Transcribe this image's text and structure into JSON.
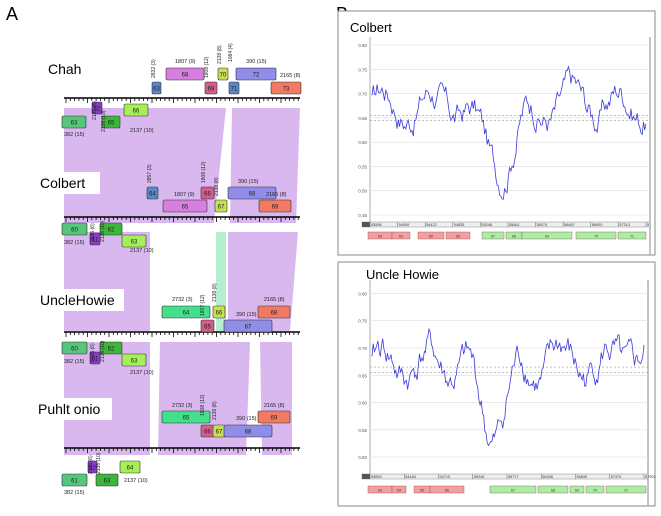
{
  "panel_a": {
    "label": "A",
    "tracks": [
      {
        "name": "Chah",
        "above": [
          {
            "id": "63",
            "label": "63",
            "color": "#5b86c8",
            "num": "2832 (3)"
          },
          {
            "id": "68",
            "label": "68",
            "color": "#d77fde",
            "num": "1807 (9)"
          },
          {
            "id": "69",
            "label": "69",
            "color": "#d45d8d",
            "num": "1808 (12)"
          },
          {
            "id": "70",
            "label": "70",
            "color": "#c8df52",
            "num": "2138 (8)"
          },
          {
            "id": "71",
            "label": "71",
            "color": "#5b86c8",
            "num": "1084 (4)"
          },
          {
            "id": "72",
            "label": "72",
            "color": "#8f8de8",
            "num": "390 (15)"
          },
          {
            "id": "73",
            "label": "73",
            "color": "#f27a63",
            "num": "2165 (8)"
          }
        ],
        "below": [
          {
            "id": "62",
            "label": "62",
            "color": "#8a3bc9",
            "num": "2135 (6)"
          },
          {
            "id": "63b",
            "label": "63",
            "color": "#57c67a",
            "num": "382 (15)"
          },
          {
            "id": "65",
            "label": "65",
            "color": "#3db43c",
            "num": "2136 (10)"
          },
          {
            "id": "66",
            "label": "66",
            "color": "#a6ef58",
            "num": "2137 (10)"
          }
        ]
      },
      {
        "name": "Colbert",
        "above": [
          {
            "id": "64",
            "label": "64",
            "color": "#5b86c8",
            "num": "2857 (3)"
          },
          {
            "id": "65",
            "label": "65",
            "color": "#d77fde",
            "num": "1807 (9)"
          },
          {
            "id": "66",
            "label": "66",
            "color": "#d45d8d",
            "num": "1808 (12)"
          },
          {
            "id": "67",
            "label": "67",
            "color": "#c8df52",
            "num": "2138 (8)"
          },
          {
            "id": "68",
            "label": "68",
            "color": "#8f8de8",
            "num": "390 (15)"
          },
          {
            "id": "69",
            "label": "69",
            "color": "#f27a63",
            "num": "2165 (8)"
          }
        ],
        "below": [
          {
            "id": "60",
            "label": "60",
            "color": "#57c67a",
            "num": "382 (15)"
          },
          {
            "id": "61",
            "label": "61",
            "color": "#8a3bc9",
            "num": "2135 (6)"
          },
          {
            "id": "62",
            "label": "62",
            "color": "#3db43c",
            "num": "2136 (10)"
          },
          {
            "id": "63",
            "label": "63",
            "color": "#a6ef58",
            "num": "2137 (10)"
          }
        ]
      },
      {
        "name": "UncleHowie",
        "above": [
          {
            "id": "64",
            "label": "64",
            "color": "#43e08c",
            "num": "2732 (3)"
          },
          {
            "id": "65",
            "label": "65",
            "color": "#d45d8d",
            "num": "1807 (12)"
          },
          {
            "id": "66",
            "label": "66",
            "color": "#c8df52",
            "num": "2138 (8)"
          },
          {
            "id": "67",
            "label": "67",
            "color": "#8f8de8",
            "num": "390 (15)"
          },
          {
            "id": "68",
            "label": "68",
            "color": "#f27a63",
            "num": "2165 (8)"
          }
        ],
        "below": [
          {
            "id": "60",
            "label": "60",
            "color": "#57c67a",
            "num": "382 (15)"
          },
          {
            "id": "61",
            "label": "61",
            "color": "#8a3bc9",
            "num": "2135 (6)"
          },
          {
            "id": "62",
            "label": "62",
            "color": "#3db43c",
            "num": "2136 (10)"
          },
          {
            "id": "63",
            "label": "63",
            "color": "#a6ef58",
            "num": "2137 (10)"
          }
        ]
      },
      {
        "name": "Puhlt onio",
        "above": [
          {
            "id": "65",
            "label": "65",
            "color": "#43e08c",
            "num": "2732 (3)"
          },
          {
            "id": "66",
            "label": "66",
            "color": "#d45d8d",
            "num": "1808 (12)"
          },
          {
            "id": "67",
            "label": "67",
            "color": "#c8df52",
            "num": "2138 (8)"
          },
          {
            "id": "68",
            "label": "68",
            "color": "#8f8de8",
            "num": "390 (15)"
          },
          {
            "id": "69",
            "label": "69",
            "color": "#f27a63",
            "num": "2165 (8)"
          }
        ],
        "below": [
          {
            "id": "61",
            "label": "61",
            "color": "#57c67a",
            "num": "382 (15)"
          },
          {
            "id": "62",
            "label": "62",
            "color": "#8a3bc9",
            "num": "2135 (6)"
          },
          {
            "id": "63",
            "label": "63",
            "color": "#3db43c",
            "num": "2136 (10)"
          },
          {
            "id": "64",
            "label": "64",
            "color": "#a6ef58",
            "num": "2137 (10)"
          }
        ]
      }
    ],
    "colors": {
      "synteny": "#d9b8f0",
      "synteny_green": "#b6efcf",
      "axis": "#000000"
    }
  },
  "panel_b": {
    "label": "B",
    "plots": [
      {
        "title": "Colbert",
        "ylim": [
          0.45,
          0.8
        ],
        "yticks": [
          "0.80",
          "0.75",
          "0.70",
          "0.65",
          "0.60",
          "0.55",
          "0.50",
          "0.45"
        ],
        "xticks": [
          "53596",
          "54009",
          "54422",
          "54835",
          "55248",
          "55661",
          "56074",
          "56487",
          "56900",
          "57313",
          "5"
        ],
        "genes": [
          {
            "label": "63",
            "color": "#f0a0a0"
          },
          {
            "label": "64",
            "color": "#f0a0a0"
          },
          {
            "label": "65",
            "color": "#f0a0a0"
          },
          {
            "label": "66",
            "color": "#f0a0a0"
          },
          {
            "label": "67",
            "color": "#a8eea8"
          },
          {
            "label": "68",
            "color": "#a8eea8"
          },
          {
            "label": "69",
            "color": "#a8eea8"
          },
          {
            "label": "70",
            "color": "#a8eea8"
          },
          {
            "label": "71",
            "color": "#a8eea8"
          }
        ],
        "line_color": "#3a3adc"
      },
      {
        "title": "Uncle Howie",
        "ylim": [
          0.48,
          0.81
        ],
        "yticks": [
          "0.80",
          "0.75",
          "0.70",
          "0.65",
          "0.60",
          "0.55",
          "0.50"
        ],
        "xticks": [
          "53653",
          "54184",
          "54715",
          "55246",
          "55777",
          "56308",
          "56839",
          "57370",
          "57902"
        ],
        "genes": [
          {
            "label": "63",
            "color": "#f0a0a0"
          },
          {
            "label": "64",
            "color": "#f0a0a0"
          },
          {
            "label": "65",
            "color": "#f0a0a0"
          },
          {
            "label": "66",
            "color": "#f0a0a0"
          },
          {
            "label": "67",
            "color": "#a8eea8"
          },
          {
            "label": "68",
            "color": "#a8eea8"
          },
          {
            "label": "69",
            "color": "#a8eea8"
          },
          {
            "label": "70",
            "color": "#a8eea8"
          },
          {
            "label": "71",
            "color": "#a8eea8"
          }
        ],
        "line_color": "#3a3adc"
      }
    ]
  }
}
